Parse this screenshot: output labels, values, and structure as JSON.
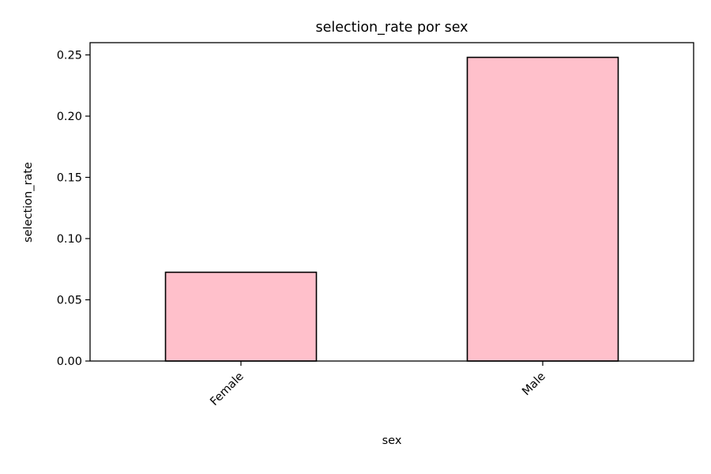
{
  "chart_data": {
    "type": "bar",
    "title": "selection_rate por sex",
    "xlabel": "sex",
    "ylabel": "selection_rate",
    "categories": [
      "Female",
      "Male"
    ],
    "values": [
      0.0725,
      0.248
    ],
    "ylim": [
      0,
      0.26
    ],
    "yticks": [
      0.0,
      0.05,
      0.1,
      0.15,
      0.2,
      0.25
    ],
    "ytick_labels": [
      "0.00",
      "0.05",
      "0.10",
      "0.15",
      "0.20",
      "0.25"
    ],
    "xtick_rotation_deg": 45,
    "bar_color": "#ffc0cb",
    "edge_color": "#000000",
    "grid": false,
    "legend": "none"
  }
}
